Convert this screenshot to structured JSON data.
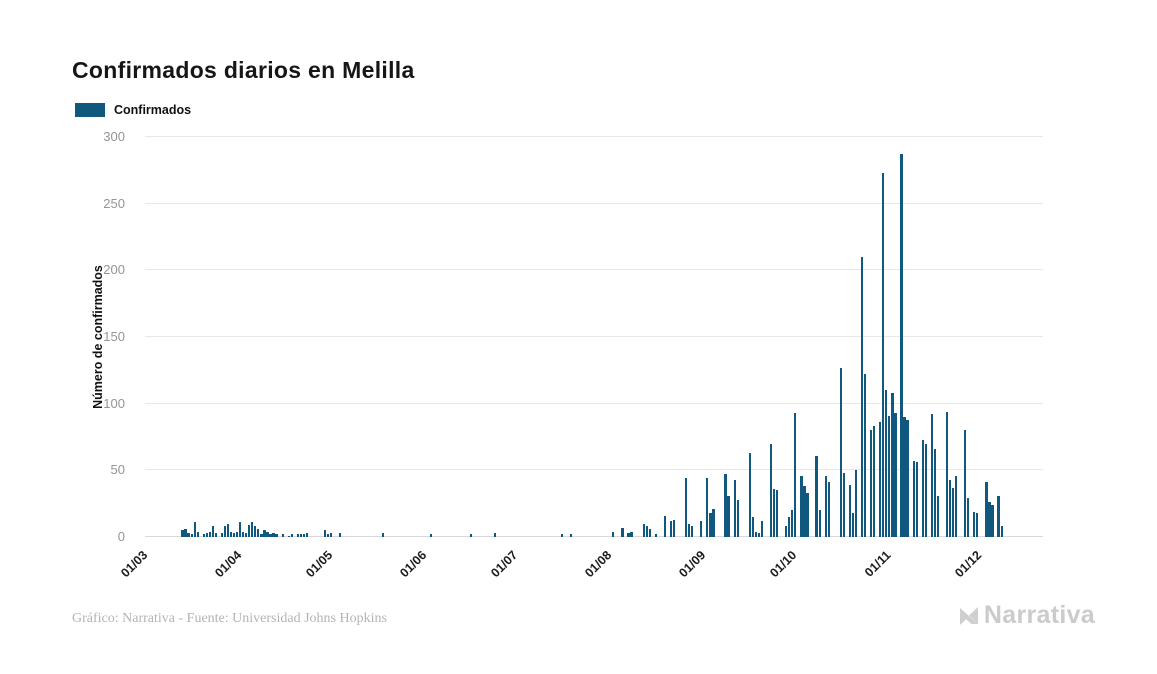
{
  "title": "Confirmados diarios en Melilla",
  "legend": {
    "label": "Confirmados",
    "color": "#10587E"
  },
  "y_axis": {
    "title": "Número de confirmados"
  },
  "footer": {
    "credit": "Gráfico: Narrativa - Fuente: Universidad Johns Hopkins",
    "brand": "Narrativa"
  },
  "chart_data": {
    "type": "bar",
    "title": "Confirmados diarios en Melilla",
    "series_name": "Confirmados",
    "xlabel": "",
    "ylabel": "Número de confirmados",
    "ylim": [
      0,
      300
    ],
    "y_ticks": [
      0,
      50,
      100,
      150,
      200,
      250,
      300
    ],
    "grid": "horizontal",
    "legend_position": "top-left",
    "bar_color": "#10587E",
    "x_unit": "day",
    "x_start_label": "01/03",
    "x_tick_labels": [
      "01/03",
      "01/04",
      "01/05",
      "01/06",
      "01/07",
      "01/08",
      "01/09",
      "01/10",
      "01/11",
      "01/12"
    ],
    "x_tick_day_index": [
      0,
      31,
      61,
      92,
      122,
      153,
      184,
      214,
      245,
      275
    ],
    "axis_domain_days": 296,
    "values": [
      0,
      0,
      0,
      0,
      0,
      0,
      0,
      0,
      0,
      0,
      0,
      0,
      5,
      6,
      3,
      2,
      11,
      4,
      0,
      2,
      3,
      4,
      8,
      3,
      0,
      3,
      8,
      10,
      4,
      3,
      4,
      11,
      4,
      3,
      9,
      11,
      8,
      6,
      2,
      5,
      4,
      2,
      3,
      2,
      0,
      2,
      0,
      1,
      2,
      0,
      2,
      2,
      2,
      3,
      0,
      0,
      0,
      0,
      0,
      5,
      2,
      3,
      0,
      0,
      3,
      0,
      0,
      0,
      0,
      0,
      0,
      0,
      0,
      0,
      0,
      0,
      0,
      0,
      3,
      0,
      0,
      0,
      0,
      0,
      0,
      0,
      0,
      0,
      0,
      0,
      0,
      0,
      0,
      0,
      2,
      0,
      0,
      0,
      0,
      0,
      0,
      0,
      0,
      0,
      0,
      0,
      0,
      2,
      0,
      0,
      0,
      0,
      0,
      0,
      0,
      3,
      0,
      0,
      0,
      0,
      0,
      0,
      0,
      0,
      0,
      0,
      0,
      0,
      0,
      0,
      0,
      0,
      0,
      0,
      0,
      0,
      0,
      2,
      0,
      0,
      2,
      0,
      0,
      0,
      0,
      0,
      0,
      0,
      0,
      0,
      0,
      0,
      0,
      0,
      4,
      0,
      0,
      7,
      0,
      3,
      4,
      0,
      0,
      0,
      10,
      8,
      6,
      0,
      2,
      0,
      0,
      16,
      0,
      12,
      13,
      0,
      0,
      0,
      44,
      10,
      8,
      0,
      0,
      12,
      0,
      44,
      18,
      21,
      0,
      0,
      0,
      47,
      31,
      0,
      43,
      28,
      0,
      0,
      0,
      63,
      15,
      4,
      3,
      12,
      0,
      0,
      70,
      36,
      35,
      0,
      0,
      8,
      15,
      20,
      93,
      0,
      46,
      38,
      33,
      0,
      0,
      61,
      20,
      0,
      46,
      41,
      0,
      0,
      0,
      127,
      48,
      0,
      39,
      18,
      50,
      0,
      210,
      122,
      0,
      80,
      83,
      0,
      86,
      273,
      110,
      91,
      108,
      93,
      0,
      287,
      90,
      88,
      0,
      57,
      56,
      0,
      73,
      70,
      0,
      92,
      66,
      31,
      0,
      0,
      94,
      43,
      37,
      46,
      0,
      0,
      80,
      29,
      0,
      19,
      18,
      0,
      0,
      41,
      26,
      24,
      0,
      31,
      8
    ]
  }
}
